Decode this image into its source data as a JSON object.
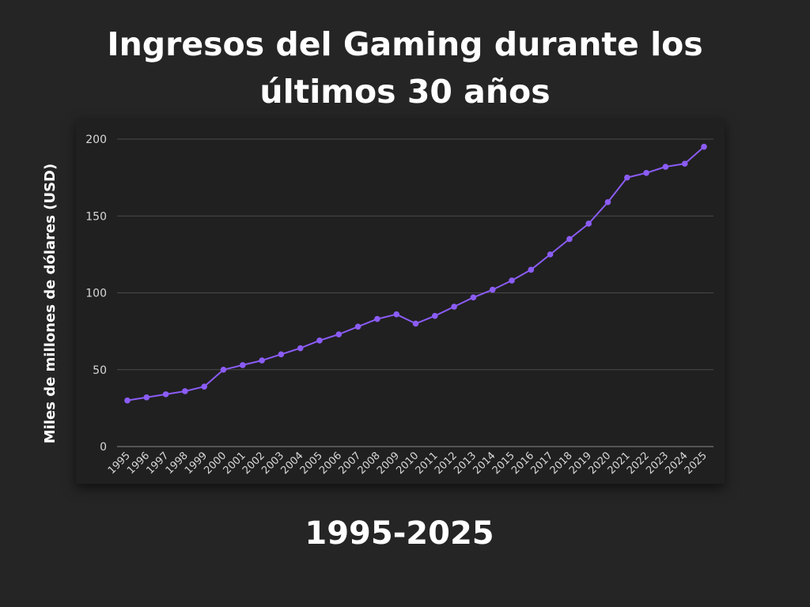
{
  "page": {
    "background": "#252525",
    "title": "Ingresos del Gaming durante los últimos 30 años",
    "footer_label": "1995-2025"
  },
  "chart_data": {
    "type": "line",
    "title": "Ingresos del Gaming durante los últimos 30 años",
    "xlabel": "",
    "ylabel": "Miles de millones de dólares (USD)",
    "categories": [
      "1995",
      "1996",
      "1997",
      "1998",
      "1999",
      "2000",
      "2001",
      "2002",
      "2003",
      "2004",
      "2005",
      "2006",
      "2007",
      "2008",
      "2009",
      "2010",
      "2011",
      "2012",
      "2013",
      "2014",
      "2015",
      "2016",
      "2017",
      "2018",
      "2019",
      "2020",
      "2021",
      "2022",
      "2023",
      "2024",
      "2025"
    ],
    "series": [
      {
        "values": [
          30,
          32,
          34,
          36,
          39,
          50,
          53,
          56,
          60,
          64,
          69,
          73,
          78,
          83,
          86,
          80,
          85,
          91,
          97,
          102,
          108,
          115,
          125,
          135,
          145,
          159,
          175,
          178,
          182,
          184,
          195
        ],
        "color": "#8b5cf6"
      }
    ],
    "ylim": [
      0,
      200
    ],
    "yticks": [
      0,
      50,
      100,
      150,
      200
    ],
    "grid": true,
    "legend": "none",
    "colors": {
      "line": "#8b5cf6",
      "grid": "#4a4a4a",
      "axis": "#8a8a8a",
      "tick_text": "#d8d8d8",
      "panel": "#202020"
    }
  }
}
